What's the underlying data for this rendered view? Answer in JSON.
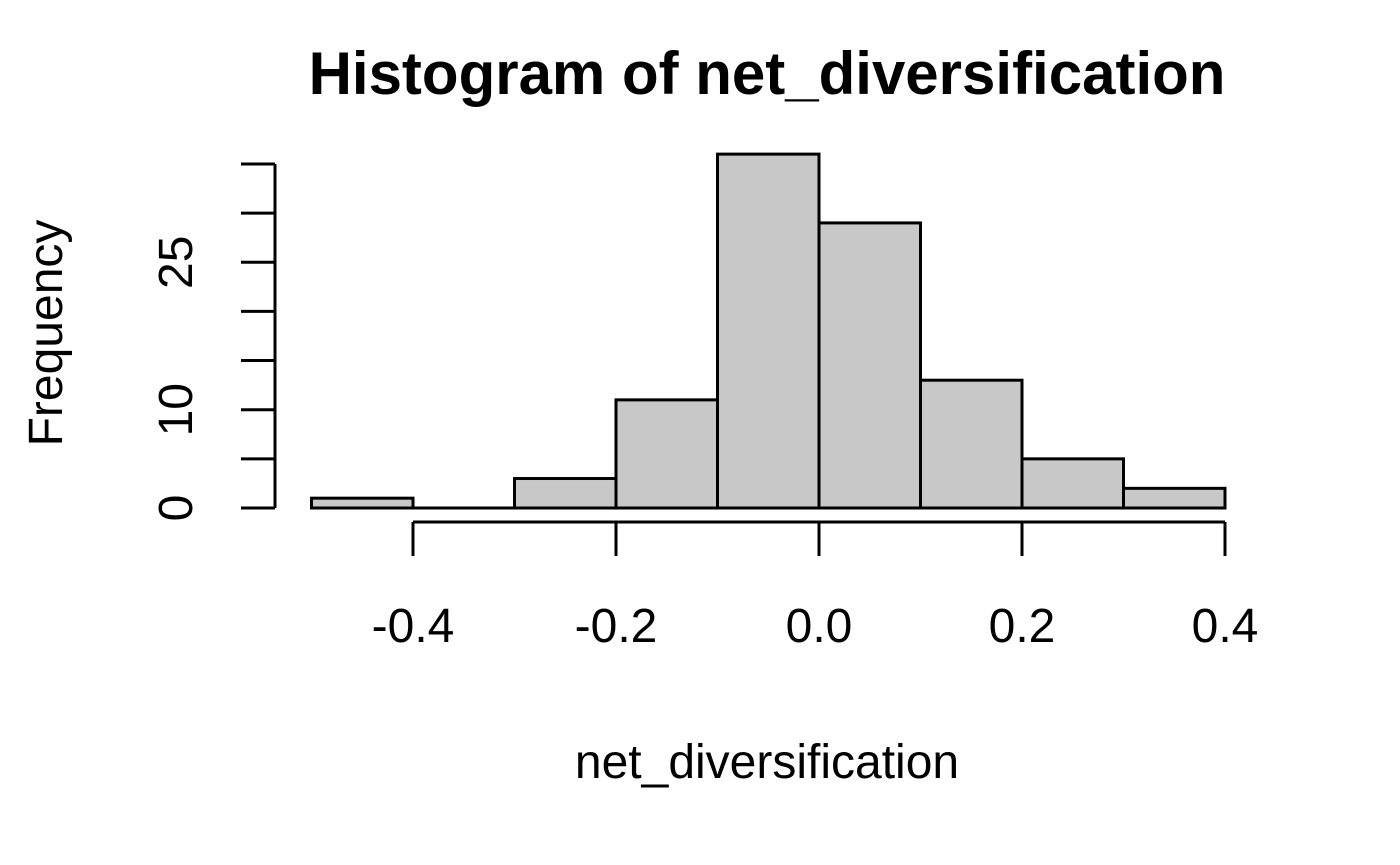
{
  "chart_data": {
    "type": "bar",
    "title": "Histogram of net_diversification",
    "xlabel": "net_diversification",
    "ylabel": "Frequency",
    "bin_edges": [
      -0.5,
      -0.4,
      -0.3,
      -0.2,
      -0.1,
      0.0,
      0.1,
      0.2,
      0.3,
      0.4
    ],
    "values": [
      1,
      0,
      3,
      11,
      36,
      29,
      13,
      5,
      2
    ],
    "x_ticks": [
      -0.4,
      -0.2,
      0.0,
      0.2,
      0.4
    ],
    "x_tick_labels": [
      "-0.4",
      "-0.2",
      "0.0",
      "0.2",
      "0.4"
    ],
    "y_ticks": [
      0,
      5,
      10,
      15,
      20,
      25,
      30,
      35
    ],
    "y_tick_labels": [
      "0",
      "",
      "10",
      "",
      "",
      "25",
      "",
      ""
    ],
    "xlim": [
      -0.5,
      0.4
    ],
    "ylim": [
      0,
      36
    ],
    "bar_fill": "#c8c8c8",
    "grid": false
  }
}
